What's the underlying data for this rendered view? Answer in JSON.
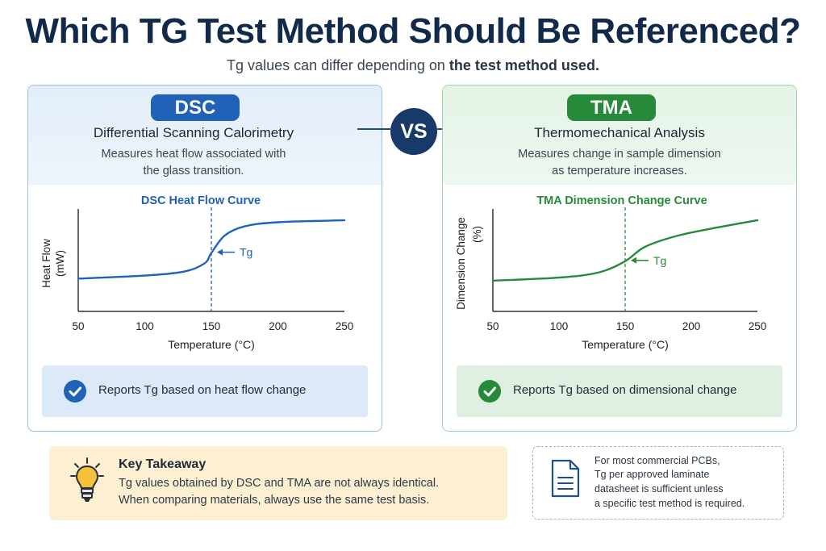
{
  "title": "Which TG Test Method Should Be Referenced?",
  "subtitle_pre": "Tg values can differ depending on ",
  "subtitle_bold": "the test method used.",
  "vs_label": "VS",
  "dsc": {
    "abbr": "DSC",
    "full_name": "Differential Scanning Calorimetry",
    "desc_line1": "Measures heat flow associated with",
    "desc_line2": "the glass transition.",
    "report": "Reports Tg based on heat flow change",
    "accent": "#1f62b8"
  },
  "tma": {
    "abbr": "TMA",
    "full_name": "Thermomechanical Analysis",
    "desc_line1": "Measures change in sample dimension",
    "desc_line2": "as temperature increases.",
    "report": "Reports Tg based on dimensional change",
    "accent": "#268a3a"
  },
  "chart_data": [
    {
      "type": "line",
      "title": "DSC Heat Flow Curve",
      "xlabel": "Temperature (°C)",
      "ylabel_line1": "Heat Flow",
      "ylabel_line2": "(mW)",
      "xticks": [
        50,
        100,
        150,
        200,
        250
      ],
      "xlim": [
        50,
        250
      ],
      "ylim": [
        0,
        10
      ],
      "x": [
        50,
        100,
        130,
        145,
        150,
        160,
        175,
        200,
        250
      ],
      "y": [
        3.2,
        3.5,
        3.9,
        4.7,
        5.7,
        7.4,
        8.3,
        8.7,
        8.9
      ],
      "marker_x": 150,
      "marker_label": "Tg",
      "color": "#1f62b8"
    },
    {
      "type": "line",
      "title": "TMA Dimension Change Curve",
      "xlabel": "Temperature (°C)",
      "ylabel_line1": "Dimension Change",
      "ylabel_line2": "(%)",
      "xticks": [
        50,
        100,
        150,
        200,
        250
      ],
      "xlim": [
        50,
        250
      ],
      "ylim": [
        0,
        10
      ],
      "x": [
        50,
        100,
        130,
        150,
        165,
        190,
        220,
        250
      ],
      "y": [
        3.0,
        3.3,
        3.8,
        4.9,
        6.3,
        7.4,
        8.2,
        8.9
      ],
      "marker_x": 150,
      "marker_label": "Tg",
      "color": "#268a3a"
    }
  ],
  "takeaway": {
    "title": "Key Takeaway",
    "line1": "Tg values obtained by DSC and TMA are not always identical.",
    "line2": "When comparing materials, always use the same test basis."
  },
  "note": {
    "line1": "For most commercial PCBs,",
    "line2": "Tg per approved laminate",
    "line3": "datasheet is sufficient unless",
    "line4": "a specific test method is required."
  }
}
